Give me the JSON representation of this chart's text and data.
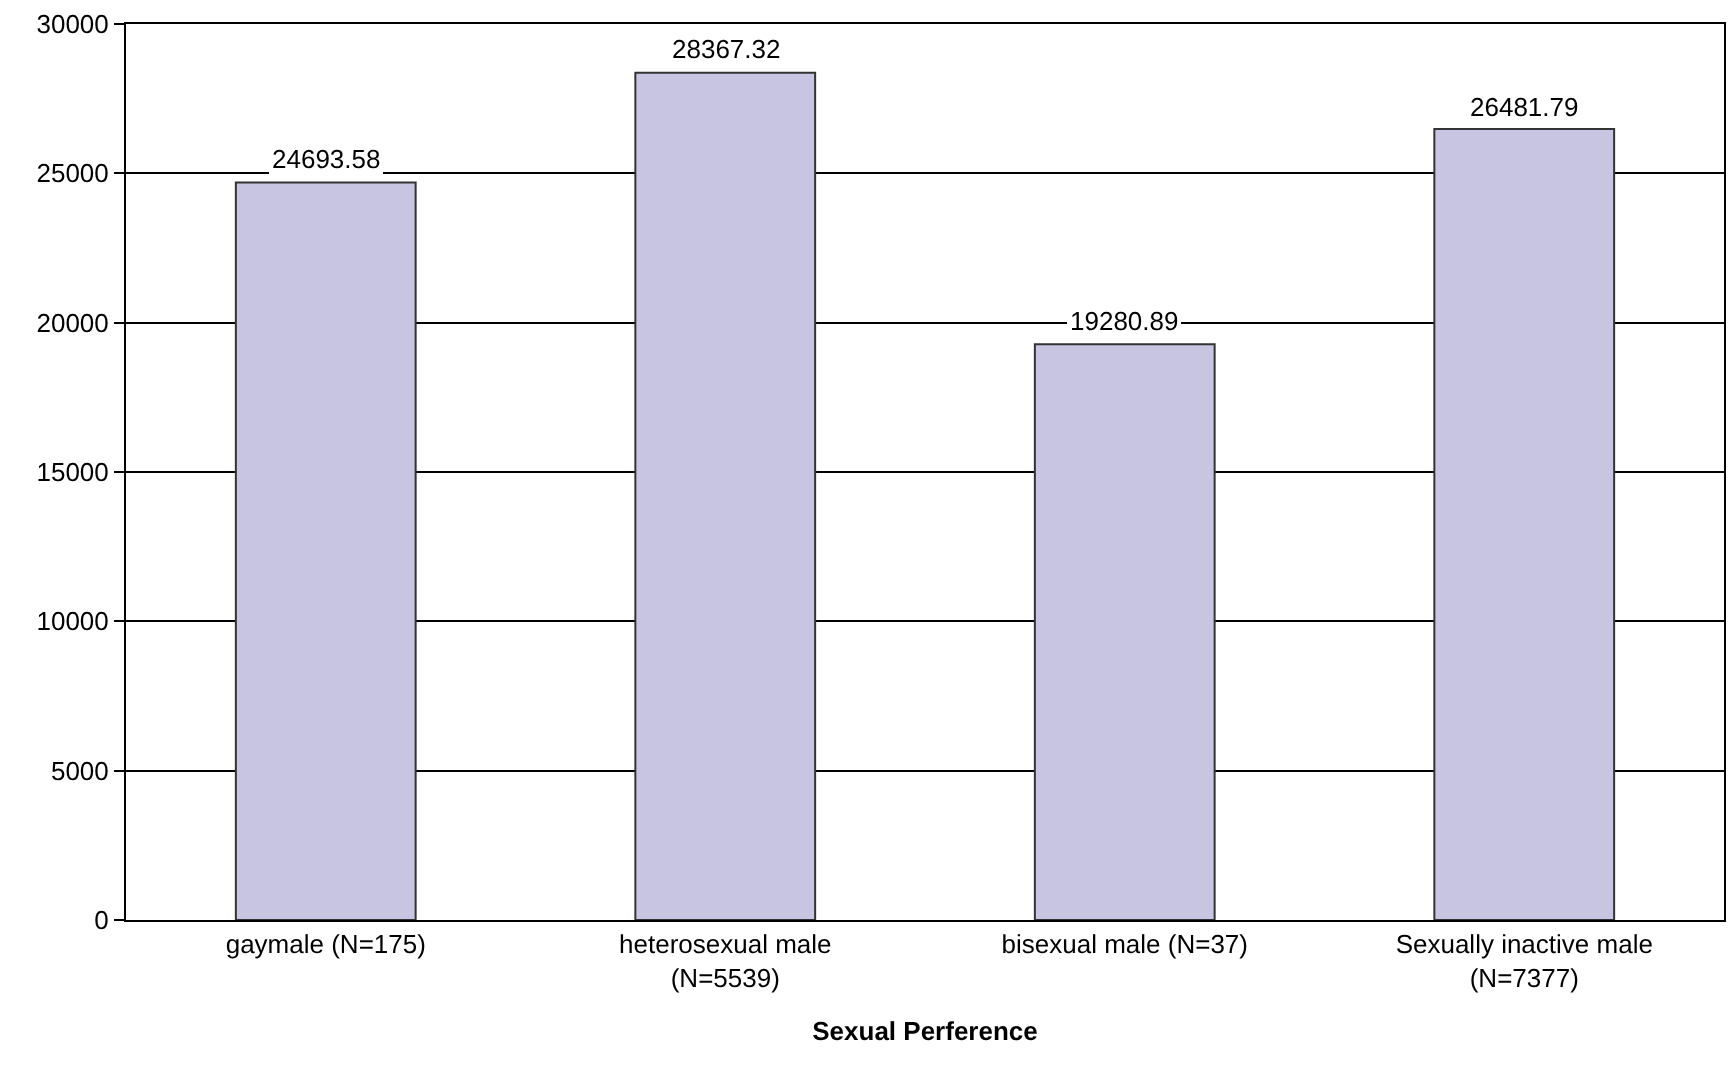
{
  "chart_data": {
    "type": "bar",
    "categories": [
      "gaymale (N=175)",
      "heterosexual male\n(N=5539)",
      "bisexual male (N=37)",
      "Sexually inactive male\n(N=7377)"
    ],
    "values": [
      24693.58,
      28367.32,
      19280.89,
      26481.79
    ],
    "color": "#c8c5e2",
    "xlabel": "Sexual Perference",
    "ylim": [
      0,
      30000
    ],
    "yticks": [
      0,
      5000,
      10000,
      15000,
      20000,
      25000,
      30000
    ],
    "grid": "y",
    "data_labels": true,
    "legend": false
  }
}
